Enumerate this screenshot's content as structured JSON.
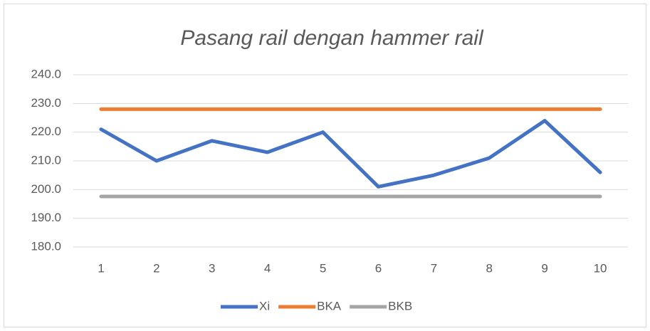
{
  "chart_data": {
    "type": "line",
    "title": "Pasang rail dengan hammer rail",
    "categories": [
      "1",
      "2",
      "3",
      "4",
      "5",
      "6",
      "7",
      "8",
      "9",
      "10"
    ],
    "series": [
      {
        "name": "Xi",
        "color": "#4472c4",
        "values": [
          221,
          210,
          217,
          213,
          220,
          201,
          205,
          211,
          224,
          206
        ]
      },
      {
        "name": "BKA",
        "color": "#ed7d31",
        "values": [
          228,
          228,
          228,
          228,
          228,
          228,
          228,
          228,
          228,
          228
        ]
      },
      {
        "name": "BKB",
        "color": "#a5a5a5",
        "values": [
          197.6,
          197.6,
          197.6,
          197.6,
          197.6,
          197.6,
          197.6,
          197.6,
          197.6,
          197.6
        ]
      }
    ],
    "ylim": [
      180,
      240
    ],
    "yticks": [
      {
        "value": 180,
        "label": "180.0"
      },
      {
        "value": 190,
        "label": "190.0"
      },
      {
        "value": 200,
        "label": "200.0"
      },
      {
        "value": 210,
        "label": "210.0"
      },
      {
        "value": 220,
        "label": "220.0"
      },
      {
        "value": 230,
        "label": "230.0"
      },
      {
        "value": 240,
        "label": "240.0"
      }
    ],
    "grid": true,
    "legend": "bottom"
  }
}
